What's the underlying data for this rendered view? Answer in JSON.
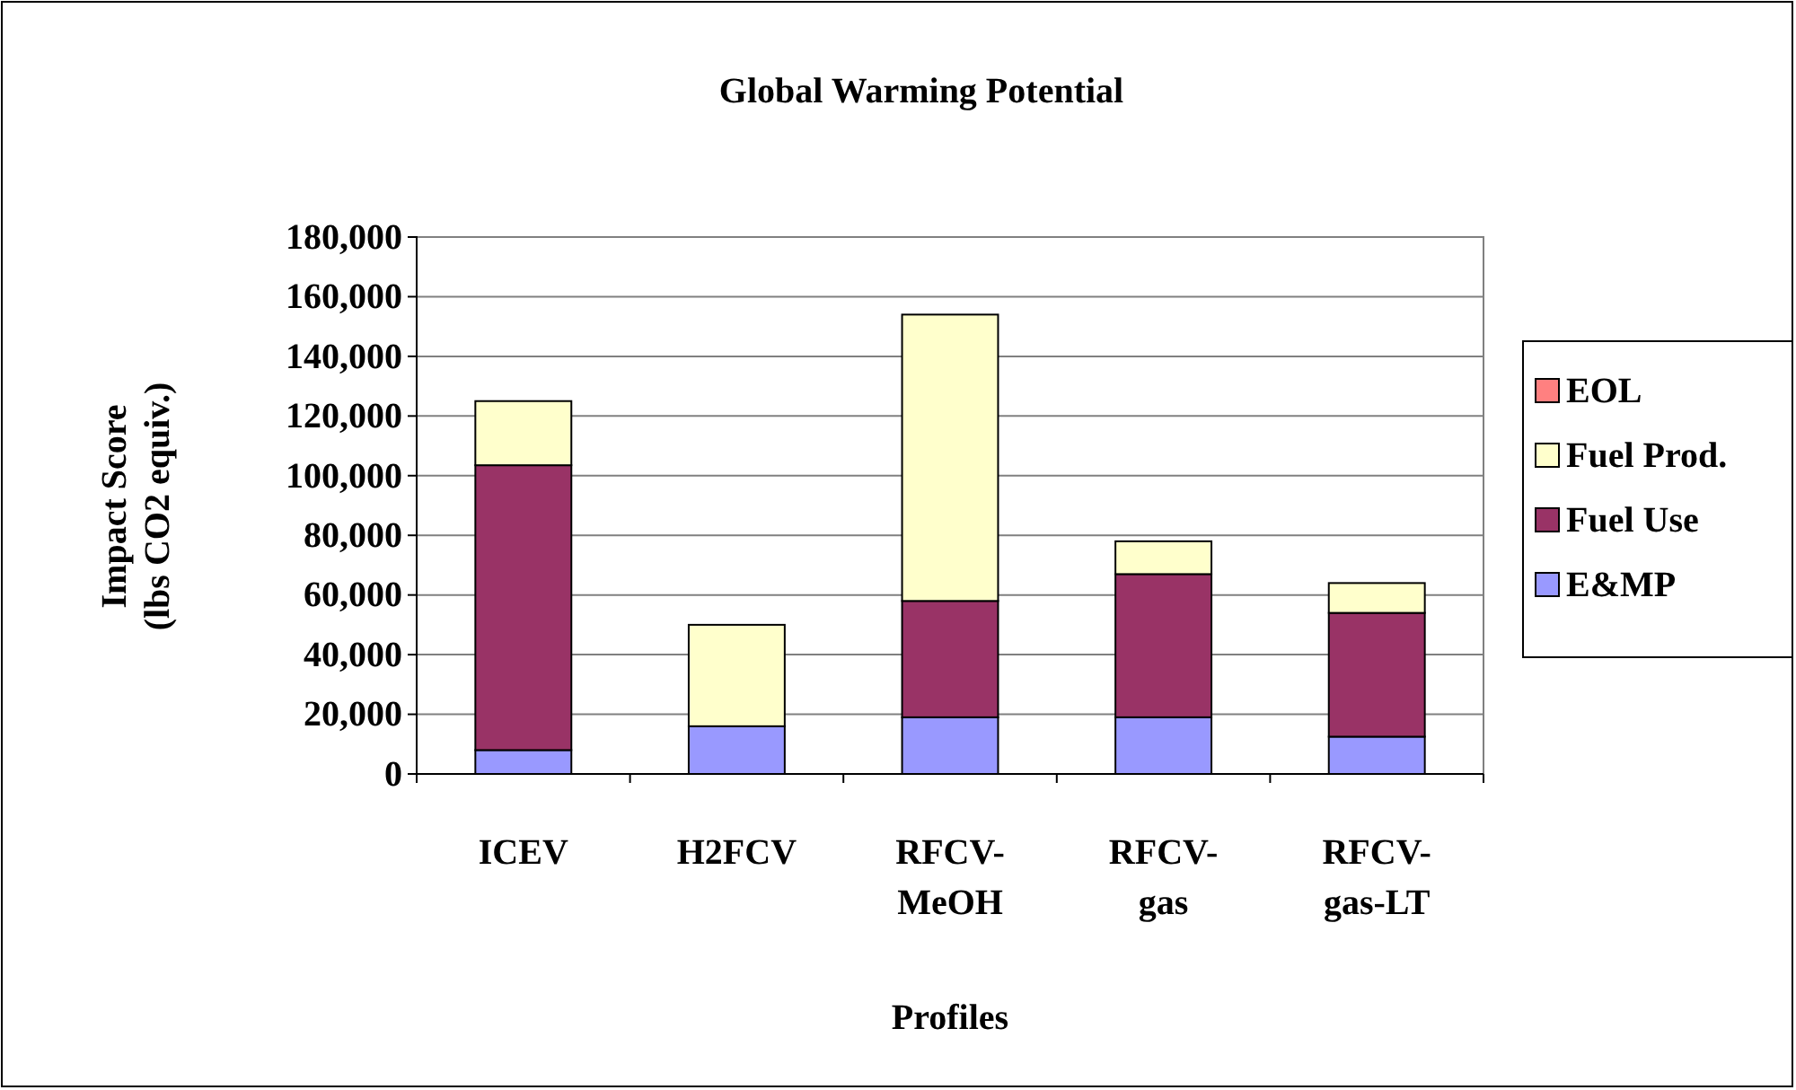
{
  "chart_data": {
    "type": "bar",
    "title": "Global Warming Potential",
    "xlabel": "Profiles",
    "ylabel": "Impact Score (lbs CO2 equiv.)",
    "categories": [
      "ICEV",
      "H2FCV",
      "RFCV-MeOH",
      "RFCV-gas",
      "RFCV-gas-LT"
    ],
    "stacked": true,
    "series": [
      {
        "name": "E&MP",
        "color": "#9999ff",
        "values": [
          8000,
          16000,
          19000,
          19000,
          12500
        ]
      },
      {
        "name": "Fuel Use",
        "color": "#993366",
        "values": [
          95500,
          0,
          39000,
          48000,
          41500
        ]
      },
      {
        "name": "Fuel Prod.",
        "color": "#ffffcc",
        "values": [
          21500,
          34000,
          96000,
          11000,
          10000
        ]
      },
      {
        "name": "EOL",
        "color": "#ff8080",
        "values": [
          0,
          0,
          0,
          0,
          0
        ]
      }
    ],
    "ylim": [
      0,
      180000
    ],
    "yticks": [
      {
        "value": 0,
        "label": "0"
      },
      {
        "value": 20000,
        "label": "20,000"
      },
      {
        "value": 40000,
        "label": "40,000"
      },
      {
        "value": 60000,
        "label": "60,000"
      },
      {
        "value": 80000,
        "label": "80,000"
      },
      {
        "value": 100000,
        "label": "100,000"
      },
      {
        "value": 120000,
        "label": "120,000"
      },
      {
        "value": 140000,
        "label": "140,000"
      },
      {
        "value": 160000,
        "label": "160,000"
      },
      {
        "value": 180000,
        "label": "180,000"
      }
    ],
    "grid": "y",
    "legend": "right"
  }
}
